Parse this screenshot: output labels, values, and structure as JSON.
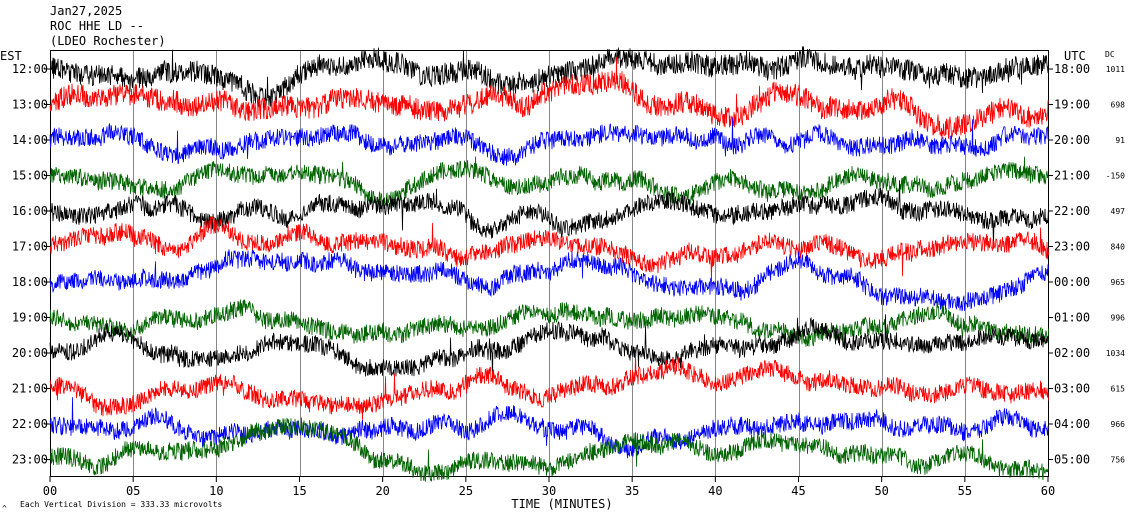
{
  "chart_data": {
    "type": "line",
    "header": {
      "date": "Jan27,2025",
      "station": "ROC HHE LD --",
      "location": "(LDEO Rochester)"
    },
    "left_axis": {
      "label": "EST",
      "ticks": [
        "12:00",
        "13:00",
        "14:00",
        "15:00",
        "16:00",
        "17:00",
        "18:00",
        "19:00",
        "20:00",
        "21:00",
        "22:00",
        "23:00"
      ]
    },
    "right_axis": {
      "label": "UTC",
      "ticks": [
        "18:00",
        "19:00",
        "20:00",
        "21:00",
        "22:00",
        "23:00",
        "00:00",
        "01:00",
        "02:00",
        "03:00",
        "04:00",
        "05:00"
      ]
    },
    "dc_label": "DC",
    "dc_values": [
      "1011",
      "698",
      "91",
      "-150",
      "497",
      "840",
      "965",
      "996",
      "1034",
      "615",
      "966",
      "756"
    ],
    "x_axis": {
      "label": "TIME (MINUTES)",
      "ticks": [
        "00",
        "05",
        "10",
        "15",
        "20",
        "25",
        "30",
        "35",
        "40",
        "45",
        "50",
        "55",
        "60"
      ],
      "range": [
        0,
        60
      ]
    },
    "scale_note": "Each Vertical Division = 333.33 microvolts",
    "corner_mark": "^",
    "trace_colors": [
      "#000000",
      "#ff0000",
      "#0000ff",
      "#006400"
    ],
    "grid": true
  }
}
